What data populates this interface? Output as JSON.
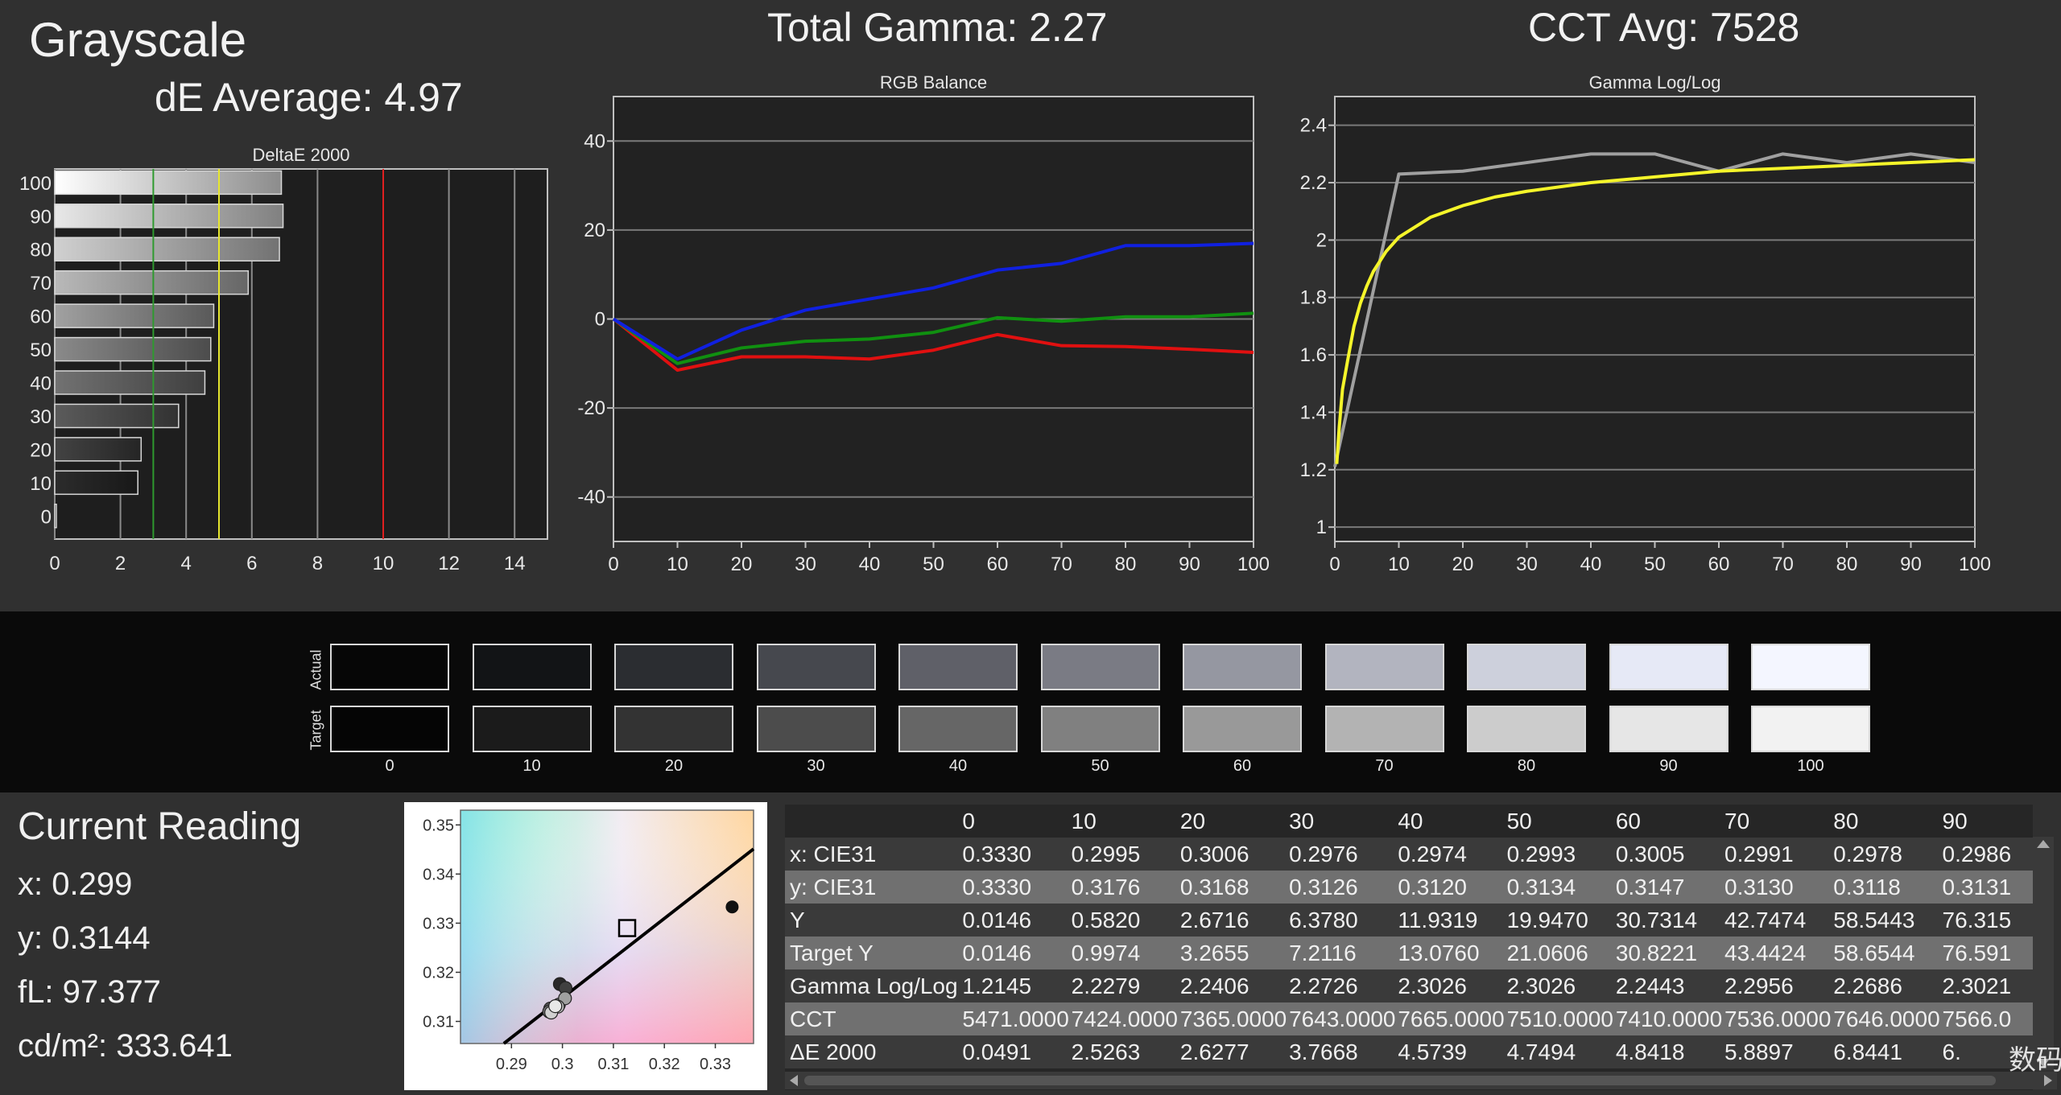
{
  "headers": {
    "grayscale": "Grayscale",
    "de_average": "dE Average: 4.97",
    "total_gamma": "Total Gamma: 2.27",
    "cct_avg": "CCT Avg: 7528"
  },
  "chart_data": [
    {
      "type": "bar",
      "title": "DeltaE 2000",
      "orientation": "horizontal",
      "categories": [
        "0",
        "10",
        "20",
        "30",
        "40",
        "50",
        "60",
        "70",
        "80",
        "90",
        "100"
      ],
      "values": [
        0.05,
        2.53,
        2.63,
        3.77,
        4.57,
        4.75,
        4.84,
        5.89,
        6.84,
        6.95,
        6.9
      ],
      "xticks": [
        0,
        2,
        4,
        6,
        8,
        10,
        12,
        14
      ],
      "xlim": [
        0,
        15
      ],
      "reference_lines": [
        {
          "value": 3,
          "color": "#2e9a2e"
        },
        {
          "value": 5,
          "color": "#e6e62e"
        },
        {
          "value": 10,
          "color": "#e02020"
        }
      ],
      "grid": true
    },
    {
      "type": "line",
      "title": "RGB Balance",
      "x": [
        0,
        10,
        20,
        30,
        40,
        50,
        60,
        70,
        80,
        90,
        100
      ],
      "series": [
        {
          "color": "#e01010",
          "values": [
            0,
            -11.5,
            -8.5,
            -8.5,
            -9,
            -7,
            -3.5,
            -6,
            -6.2,
            -6.8,
            -7.5
          ]
        },
        {
          "color": "#109010",
          "values": [
            0,
            -10,
            -6.5,
            -5,
            -4.5,
            -3,
            0.3,
            -0.5,
            0.5,
            0.5,
            1.3
          ]
        },
        {
          "color": "#1020e0",
          "values": [
            0,
            -9,
            -2.5,
            2,
            4.5,
            7,
            11,
            12.5,
            16.5,
            16.5,
            17
          ]
        }
      ],
      "xticks": [
        0,
        10,
        20,
        30,
        40,
        50,
        60,
        70,
        80,
        90,
        100
      ],
      "yticks": [
        -40,
        -20,
        0,
        20,
        40
      ],
      "xlim": [
        0,
        100
      ],
      "ylim": [
        -50,
        50
      ],
      "grid": true
    },
    {
      "type": "line",
      "title": "Gamma Log/Log",
      "x": [
        0,
        10,
        20,
        30,
        40,
        50,
        60,
        70,
        80,
        90,
        100
      ],
      "series": [
        {
          "color": "#a0a0a0",
          "values": [
            1.21,
            2.23,
            2.24,
            2.27,
            2.3,
            2.3,
            2.24,
            2.3,
            2.27,
            2.3,
            2.27
          ]
        },
        {
          "color": "#f5f52a",
          "x": [
            0.3,
            0.7,
            1.2,
            2,
            3,
            4,
            5,
            6,
            8,
            10,
            15,
            20,
            25,
            30,
            40,
            50,
            60,
            70,
            80,
            90,
            100
          ],
          "values": [
            1.22,
            1.35,
            1.48,
            1.58,
            1.7,
            1.78,
            1.84,
            1.89,
            1.96,
            2.01,
            2.08,
            2.12,
            2.15,
            2.17,
            2.2,
            2.22,
            2.24,
            2.25,
            2.26,
            2.27,
            2.28
          ]
        }
      ],
      "xticks": [
        0,
        10,
        20,
        30,
        40,
        50,
        60,
        70,
        80,
        90,
        100
      ],
      "yticks": [
        1,
        1.2,
        1.4,
        1.6,
        1.8,
        2,
        2.2,
        2.4
      ],
      "ytick_labels": [
        "1",
        "1.2",
        "1.4",
        "1.6",
        "1.8",
        "2",
        "2.2",
        "2.4"
      ],
      "xlim": [
        0,
        100
      ],
      "ylim": [
        0.95,
        2.5
      ],
      "grid": true
    },
    {
      "type": "scatter",
      "title": "",
      "xticks": [
        0.29,
        0.3,
        0.31,
        0.32,
        0.33
      ],
      "yticks": [
        0.31,
        0.32,
        0.33,
        0.34,
        0.35
      ],
      "xlim": [
        0.28,
        0.3375
      ],
      "ylim": [
        0.3055,
        0.353
      ],
      "target_square": [
        0.3127,
        0.329
      ],
      "measured_dot": [
        0.3333,
        0.3333
      ],
      "points": [
        [
          0.2995,
          0.3176
        ],
        [
          0.3006,
          0.3168
        ],
        [
          0.2976,
          0.3126
        ],
        [
          0.2974,
          0.312
        ],
        [
          0.2993,
          0.3134
        ],
        [
          0.3005,
          0.3147
        ],
        [
          0.2991,
          0.313
        ],
        [
          0.2978,
          0.3118
        ],
        [
          0.2986,
          0.3131
        ]
      ],
      "locus_line": [
        [
          0.2885,
          0.3055
        ],
        [
          0.3375,
          0.3451
        ]
      ]
    }
  ],
  "swatches": {
    "row_actual": "Actual",
    "row_target": "Target",
    "labels": [
      "0",
      "10",
      "20",
      "30",
      "40",
      "50",
      "60",
      "70",
      "80",
      "90",
      "100"
    ],
    "actual_colors": [
      "#060606",
      "#121416",
      "#2b2d31",
      "#46484e",
      "#5f6068",
      "#7a7b84",
      "#9597a1",
      "#b2b4bf",
      "#cdd0dc",
      "#e6e9f6",
      "#f4f6ff"
    ],
    "target_colors": [
      "#050505",
      "#1b1b1b",
      "#333333",
      "#4c4c4c",
      "#666666",
      "#808080",
      "#999999",
      "#b3b3b3",
      "#cccccc",
      "#e6e6e6",
      "#f2f2f2"
    ]
  },
  "reading": {
    "title": "Current Reading",
    "x": "x: 0.299",
    "y": "y: 0.3144",
    "fl": "fL: 97.377",
    "cdm2": "cd/m²: 333.641"
  },
  "table": {
    "columns": [
      "",
      "0",
      "10",
      "20",
      "30",
      "40",
      "50",
      "60",
      "70",
      "80",
      "90"
    ],
    "rows": [
      [
        "x: CIE31",
        "0.3330",
        "0.2995",
        "0.3006",
        "0.2976",
        "0.2974",
        "0.2993",
        "0.3005",
        "0.2991",
        "0.2978",
        "0.2986"
      ],
      [
        "y: CIE31",
        "0.3330",
        "0.3176",
        "0.3168",
        "0.3126",
        "0.3120",
        "0.3134",
        "0.3147",
        "0.3130",
        "0.3118",
        "0.3131"
      ],
      [
        "Y",
        "0.0146",
        "0.5820",
        "2.6716",
        "6.3780",
        "11.9319",
        "19.9470",
        "30.7314",
        "42.7474",
        "58.5443",
        "76.315"
      ],
      [
        "Target Y",
        "0.0146",
        "0.9974",
        "3.2655",
        "7.2116",
        "13.0760",
        "21.0606",
        "30.8221",
        "43.4424",
        "58.6544",
        "76.591"
      ],
      [
        "Gamma Log/Log",
        "1.2145",
        "2.2279",
        "2.2406",
        "2.2726",
        "2.3026",
        "2.3026",
        "2.2443",
        "2.2956",
        "2.2686",
        "2.3021"
      ],
      [
        "CCT",
        "5471.0000",
        "7424.0000",
        "7365.0000",
        "7643.0000",
        "7665.0000",
        "7510.0000",
        "7410.0000",
        "7536.0000",
        "7646.0000",
        "7566.0"
      ],
      [
        "ΔE 2000",
        "0.0491",
        "2.5263",
        "2.6277",
        "3.7668",
        "4.5739",
        "4.7494",
        "4.8418",
        "5.8897",
        "6.8441",
        "6."
      ]
    ]
  },
  "watermark": "数码多"
}
